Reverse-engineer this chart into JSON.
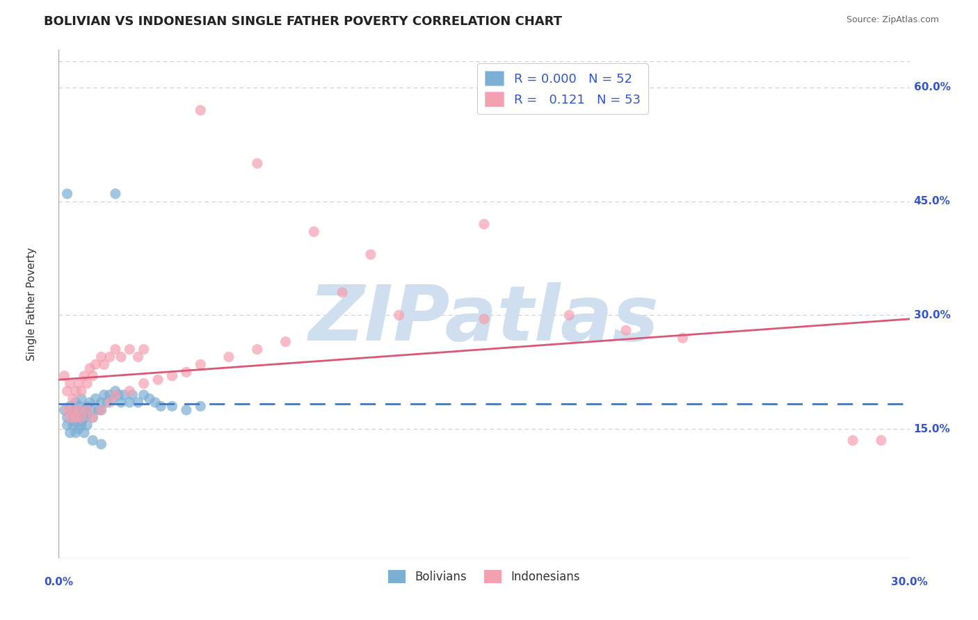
{
  "title": "BOLIVIAN VS INDONESIAN SINGLE FATHER POVERTY CORRELATION CHART",
  "source": "Source: ZipAtlas.com",
  "ylabel": "Single Father Poverty",
  "xlim": [
    0.0,
    0.3
  ],
  "ylim": [
    -0.02,
    0.65
  ],
  "bolivians_R": 0.0,
  "bolivians_N": 52,
  "indonesians_R": 0.121,
  "indonesians_N": 53,
  "blue_color": "#7BAFD4",
  "pink_color": "#F4A0B0",
  "blue_line_color": "#4477BB",
  "pink_line_color": "#DD5577",
  "legend_text_color": "#3355CC",
  "axis_label_color": "#3355CC",
  "grid_color": "#CCCCCC",
  "background_color": "#FFFFFF",
  "watermark_text": "ZIPatlas",
  "watermark_color": "#D0DFF0",
  "title_fontsize": 13,
  "source_fontsize": 9,
  "bolivians_x": [
    0.002,
    0.003,
    0.004,
    0.005,
    0.005,
    0.006,
    0.006,
    0.007,
    0.007,
    0.008,
    0.008,
    0.009,
    0.009,
    0.01,
    0.01,
    0.011,
    0.012,
    0.012,
    0.013,
    0.014,
    0.015,
    0.015,
    0.016,
    0.017,
    0.018,
    0.019,
    0.02,
    0.021,
    0.022,
    0.023,
    0.025,
    0.026,
    0.028,
    0.03,
    0.032,
    0.034,
    0.036,
    0.04,
    0.045,
    0.05,
    0.003,
    0.004,
    0.005,
    0.006,
    0.007,
    0.008,
    0.009,
    0.01,
    0.012,
    0.015,
    0.003,
    0.02
  ],
  "bolivians_y": [
    0.175,
    0.165,
    0.18,
    0.17,
    0.16,
    0.185,
    0.175,
    0.18,
    0.17,
    0.19,
    0.16,
    0.175,
    0.165,
    0.18,
    0.17,
    0.185,
    0.175,
    0.165,
    0.19,
    0.175,
    0.185,
    0.175,
    0.195,
    0.185,
    0.195,
    0.19,
    0.2,
    0.195,
    0.185,
    0.195,
    0.185,
    0.195,
    0.185,
    0.195,
    0.19,
    0.185,
    0.18,
    0.18,
    0.175,
    0.18,
    0.155,
    0.145,
    0.155,
    0.145,
    0.15,
    0.155,
    0.145,
    0.155,
    0.135,
    0.13,
    0.46,
    0.46
  ],
  "indonesians_x": [
    0.002,
    0.003,
    0.004,
    0.005,
    0.006,
    0.007,
    0.008,
    0.009,
    0.01,
    0.011,
    0.012,
    0.013,
    0.015,
    0.016,
    0.018,
    0.02,
    0.022,
    0.025,
    0.028,
    0.03,
    0.003,
    0.004,
    0.005,
    0.006,
    0.007,
    0.008,
    0.01,
    0.012,
    0.015,
    0.018,
    0.02,
    0.025,
    0.03,
    0.035,
    0.04,
    0.045,
    0.05,
    0.06,
    0.07,
    0.08,
    0.1,
    0.12,
    0.15,
    0.18,
    0.2,
    0.22,
    0.05,
    0.07,
    0.09,
    0.11,
    0.15,
    0.28,
    0.29
  ],
  "indonesians_y": [
    0.22,
    0.2,
    0.21,
    0.19,
    0.2,
    0.21,
    0.2,
    0.22,
    0.21,
    0.23,
    0.22,
    0.235,
    0.245,
    0.235,
    0.245,
    0.255,
    0.245,
    0.255,
    0.245,
    0.255,
    0.175,
    0.165,
    0.175,
    0.165,
    0.175,
    0.165,
    0.175,
    0.165,
    0.175,
    0.185,
    0.195,
    0.2,
    0.21,
    0.215,
    0.22,
    0.225,
    0.235,
    0.245,
    0.255,
    0.265,
    0.33,
    0.3,
    0.295,
    0.3,
    0.28,
    0.27,
    0.57,
    0.5,
    0.41,
    0.38,
    0.42,
    0.135,
    0.135
  ],
  "blue_trend_y_start": 0.183,
  "blue_trend_y_end": 0.183,
  "pink_trend_y_start": 0.215,
  "pink_trend_y_end": 0.295
}
